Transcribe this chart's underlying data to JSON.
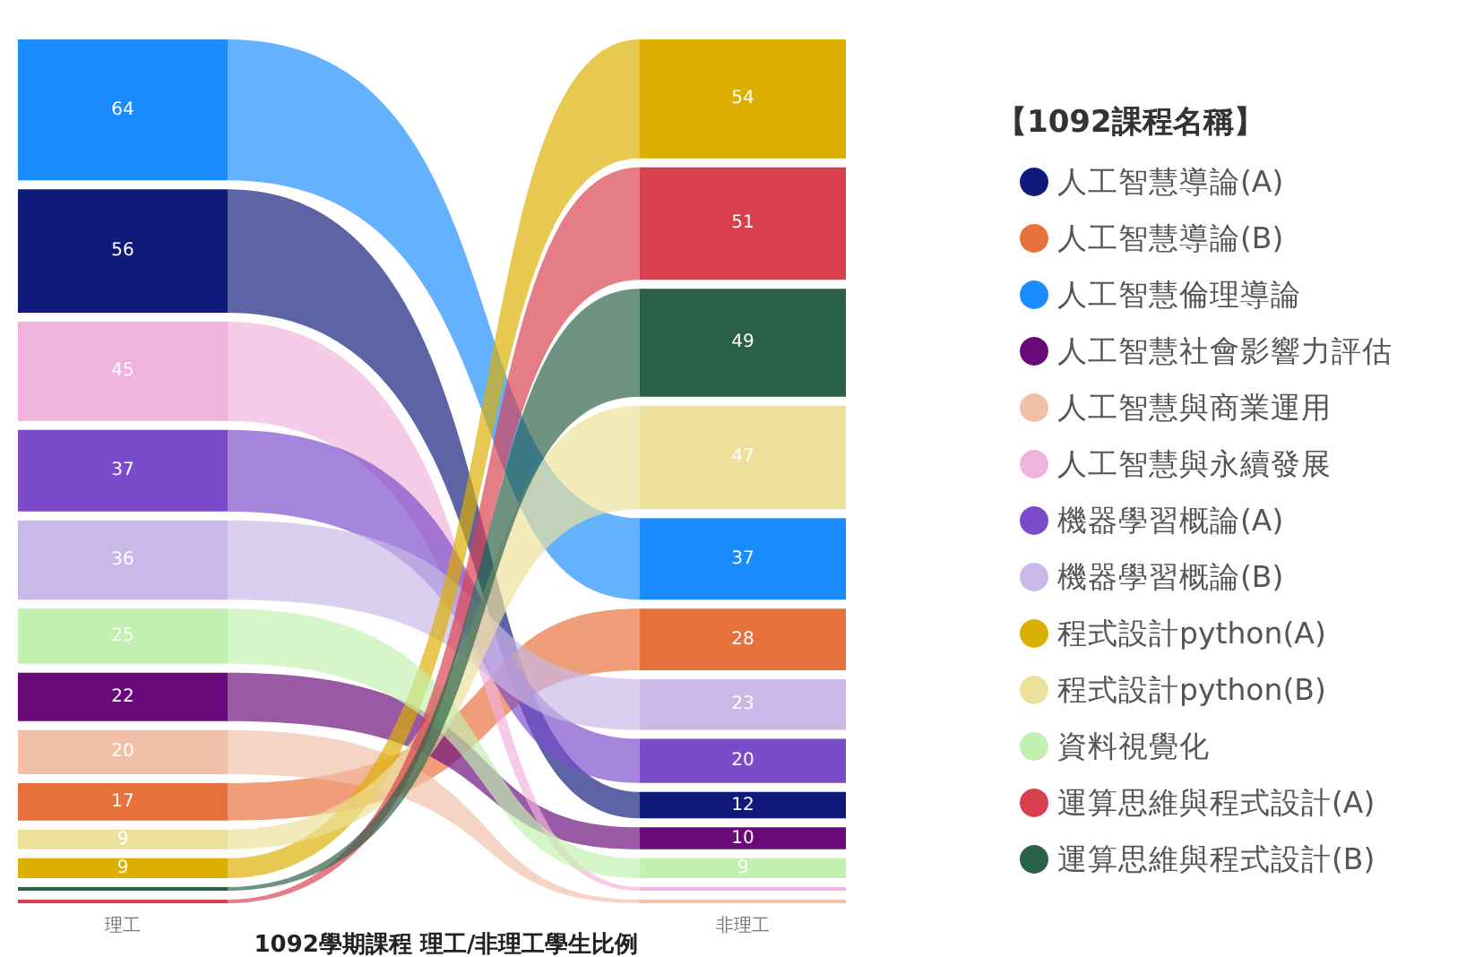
{
  "chart_data": {
    "type": "other",
    "title": "1092學期課程 理工/非理工學生比例",
    "legend_title": "【1092課程名稱】",
    "legend": "right",
    "categories": [
      "理工",
      "非理工"
    ],
    "series": [
      {
        "name": "人工智慧導論(A)",
        "color": "#101a7a",
        "values": [
          56,
          12
        ],
        "value_labels": [
          "56",
          "12"
        ]
      },
      {
        "name": "人工智慧導論(B)",
        "color": "#e8703a",
        "values": [
          17,
          28
        ],
        "value_labels": [
          "17",
          "28"
        ]
      },
      {
        "name": "人工智慧倫理導論",
        "color": "#1a8cff",
        "values": [
          64,
          37
        ],
        "value_labels": [
          "64",
          "37"
        ]
      },
      {
        "name": "人工智慧社會影響力評估",
        "color": "#6a0a7a",
        "values": [
          22,
          10
        ],
        "value_labels": [
          "22",
          "10"
        ]
      },
      {
        "name": "人工智慧與商業運用",
        "color": "#f2bfa8",
        "values": [
          20,
          null
        ],
        "value_labels": [
          "20",
          null
        ]
      },
      {
        "name": "人工智慧與永續發展",
        "color": "#f0b3dc",
        "values": [
          45,
          null
        ],
        "value_labels": [
          "45",
          null
        ]
      },
      {
        "name": "機器學習概論(A)",
        "color": "#7a4ccc",
        "values": [
          37,
          20
        ],
        "value_labels": [
          "37",
          "20"
        ]
      },
      {
        "name": "機器學習概論(B)",
        "color": "#c9b8e8",
        "values": [
          36,
          23
        ],
        "value_labels": [
          "36",
          "23"
        ]
      },
      {
        "name": "程式設計python(A)",
        "color": "#dbb000",
        "values": [
          9,
          54
        ],
        "value_labels": [
          "9",
          "54"
        ]
      },
      {
        "name": "程式設計python(B)",
        "color": "#ede09a",
        "values": [
          9,
          47
        ],
        "value_labels": [
          "9",
          "47"
        ]
      },
      {
        "name": "資料視覺化",
        "color": "#c2f0b0",
        "values": [
          25,
          9
        ],
        "value_labels": [
          "25",
          "9"
        ]
      },
      {
        "name": "運算思維與程式設計(A)",
        "color": "#d9404e",
        "values": [
          null,
          51
        ],
        "value_labels": [
          null,
          "51"
        ]
      },
      {
        "name": "運算思維與程式設計(B)",
        "color": "#2a6048",
        "values": [
          null,
          49
        ],
        "value_labels": [
          null,
          "49"
        ]
      }
    ]
  }
}
